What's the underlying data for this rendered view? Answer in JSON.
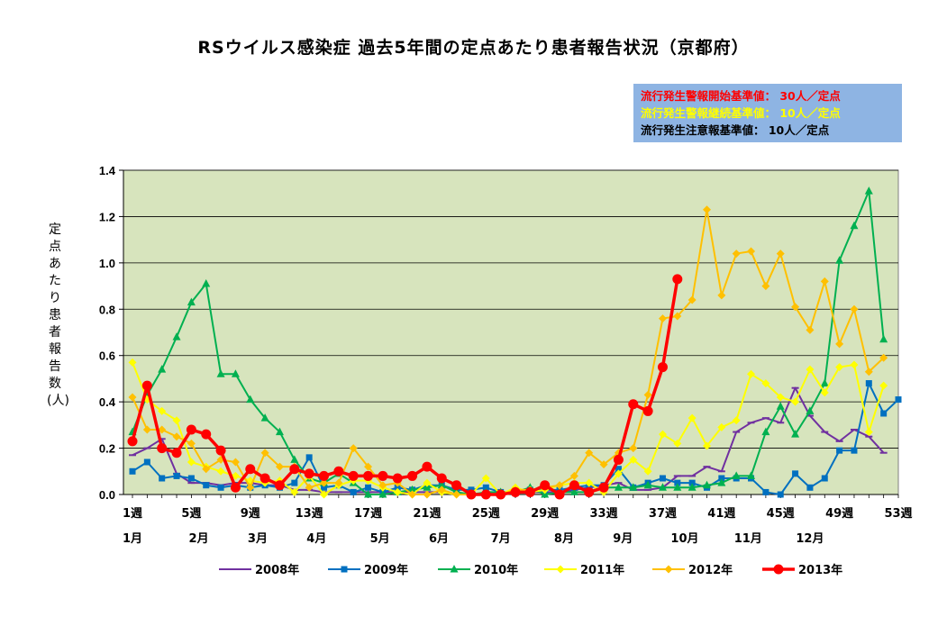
{
  "title": "RSウイルス感染症 過去5年間の定点あたり患者報告状況（京都府）",
  "criteria": [
    {
      "text": "流行発生警報開始基準値： 30人／定点",
      "color": "#ff0000"
    },
    {
      "text": "流行発生警報継続基準値： 10人／定点",
      "color": "#ffff00"
    },
    {
      "text": "流行発生注意報基準値： 10人／定点",
      "color": "#000000"
    }
  ],
  "chart_data": {
    "type": "line",
    "ylabel": "定点あたり患者報告数(人)",
    "ylim": [
      0,
      1.4
    ],
    "yticks": [
      "0.0",
      "0.2",
      "0.4",
      "0.6",
      "0.8",
      "1.0",
      "1.2",
      "1.4"
    ],
    "xlim": [
      1,
      53
    ],
    "week_labels": [
      {
        "week": 1,
        "label": "1週"
      },
      {
        "week": 5,
        "label": "5週"
      },
      {
        "week": 9,
        "label": "9週"
      },
      {
        "week": 13,
        "label": "13週"
      },
      {
        "week": 17,
        "label": "17週"
      },
      {
        "week": 21,
        "label": "21週"
      },
      {
        "week": 25,
        "label": "25週"
      },
      {
        "week": 29,
        "label": "29週"
      },
      {
        "week": 33,
        "label": "33週"
      },
      {
        "week": 37,
        "label": "37週"
      },
      {
        "week": 41,
        "label": "41週"
      },
      {
        "week": 45,
        "label": "45週"
      },
      {
        "week": 49,
        "label": "49週"
      },
      {
        "week": 53,
        "label": "53週"
      }
    ],
    "month_labels": [
      {
        "week": 1,
        "label": "1月"
      },
      {
        "week": 5.5,
        "label": "2月"
      },
      {
        "week": 9.5,
        "label": "3月"
      },
      {
        "week": 13.5,
        "label": "4月"
      },
      {
        "week": 17.8,
        "label": "5月"
      },
      {
        "week": 21.8,
        "label": "6月"
      },
      {
        "week": 26,
        "label": "7月"
      },
      {
        "week": 30.3,
        "label": "8月"
      },
      {
        "week": 34.3,
        "label": "9月"
      },
      {
        "week": 38.5,
        "label": "10月"
      },
      {
        "week": 42.8,
        "label": "11月"
      },
      {
        "week": 47,
        "label": "12月"
      }
    ],
    "grid": true,
    "legend_position": "bottom",
    "series": [
      {
        "name": "2008年",
        "color": "#7030a0",
        "marker": "dash",
        "values": [
          0.17,
          0.2,
          0.24,
          0.09,
          0.05,
          0.05,
          0.04,
          0.05,
          0.05,
          0.04,
          0.04,
          0.02,
          0.02,
          0.01,
          0.01,
          0.01,
          0.01,
          0.01,
          0.01,
          0.01,
          0.01,
          0.01,
          0.0,
          0.0,
          0.0,
          0.0,
          0.01,
          0.01,
          0.01,
          0.01,
          0.02,
          0.03,
          0.04,
          0.05,
          0.02,
          0.02,
          0.03,
          0.08,
          0.08,
          0.12,
          0.1,
          0.27,
          0.31,
          0.33,
          0.31,
          0.46,
          0.34,
          0.27,
          0.23,
          0.28,
          0.25,
          0.18,
          null
        ]
      },
      {
        "name": "2009年",
        "color": "#0070c0",
        "marker": "square",
        "values": [
          0.1,
          0.14,
          0.07,
          0.08,
          0.07,
          0.04,
          0.03,
          0.04,
          0.03,
          0.04,
          0.03,
          0.05,
          0.16,
          0.03,
          0.04,
          0.01,
          0.03,
          0.01,
          0.03,
          0.02,
          0.04,
          0.04,
          0.02,
          0.02,
          0.03,
          0.01,
          0.01,
          0.02,
          0.02,
          0.02,
          0.03,
          0.04,
          0.04,
          0.11,
          0.03,
          0.05,
          0.07,
          0.05,
          0.05,
          0.03,
          0.07,
          0.07,
          0.07,
          0.01,
          0.0,
          0.09,
          0.03,
          0.07,
          0.19,
          0.19,
          0.48,
          0.35,
          0.41
        ]
      },
      {
        "name": "2010年",
        "color": "#00b050",
        "marker": "triangle",
        "values": [
          0.27,
          0.43,
          0.54,
          0.68,
          0.83,
          0.91,
          0.52,
          0.52,
          0.41,
          0.33,
          0.27,
          0.15,
          0.07,
          0.05,
          0.09,
          0.05,
          0.0,
          0.0,
          0.01,
          0.02,
          0.03,
          0.04,
          0.01,
          0.0,
          0.01,
          0.01,
          0.01,
          0.03,
          0.0,
          0.01,
          0.01,
          0.01,
          0.03,
          0.03,
          0.03,
          0.04,
          0.03,
          0.03,
          0.03,
          0.04,
          0.05,
          0.08,
          0.08,
          0.27,
          0.38,
          0.26,
          0.36,
          0.48,
          1.01,
          1.16,
          1.31,
          0.67,
          null
        ]
      },
      {
        "name": "2011年",
        "color": "#ffff00",
        "marker": "diamond",
        "values": [
          0.57,
          0.41,
          0.36,
          0.32,
          0.14,
          0.12,
          0.1,
          0.08,
          0.06,
          0.05,
          0.06,
          0.01,
          0.08,
          0.0,
          0.04,
          0.06,
          0.06,
          0.03,
          0.01,
          0.0,
          0.05,
          0.01,
          0.0,
          0.0,
          0.07,
          0.0,
          0.03,
          0.01,
          0.02,
          0.04,
          0.05,
          0.05,
          0.01,
          0.09,
          0.15,
          0.1,
          0.26,
          0.22,
          0.33,
          0.21,
          0.29,
          0.32,
          0.52,
          0.48,
          0.42,
          0.4,
          0.54,
          0.44,
          0.55,
          0.56,
          0.27,
          0.47,
          null
        ]
      },
      {
        "name": "2012年",
        "color": "#ffc000",
        "marker": "diamond",
        "values": [
          0.42,
          0.28,
          0.28,
          0.25,
          0.22,
          0.11,
          0.15,
          0.14,
          0.03,
          0.18,
          0.12,
          0.12,
          0.03,
          0.05,
          0.05,
          0.2,
          0.12,
          0.04,
          0.05,
          0.0,
          0.0,
          0.02,
          0.0,
          0.0,
          0.0,
          0.0,
          0.02,
          0.02,
          0.03,
          0.04,
          0.08,
          0.18,
          0.13,
          0.18,
          0.2,
          0.43,
          0.76,
          0.77,
          0.84,
          1.23,
          0.86,
          1.04,
          1.05,
          0.9,
          1.04,
          0.81,
          0.71,
          0.92,
          0.65,
          0.8,
          0.53,
          0.59,
          null
        ]
      },
      {
        "name": "2013年",
        "color": "#ff0000",
        "marker": "circle",
        "values": [
          0.23,
          0.47,
          0.2,
          0.18,
          0.28,
          0.26,
          0.19,
          0.03,
          0.11,
          0.07,
          0.04,
          0.11,
          0.09,
          0.08,
          0.1,
          0.08,
          0.08,
          0.08,
          0.07,
          0.08,
          0.12,
          0.07,
          0.04,
          0.0,
          0.0,
          0.0,
          0.01,
          0.01,
          0.04,
          0.0,
          0.04,
          0.01,
          0.03,
          0.15,
          0.39,
          0.36,
          0.55,
          0.93,
          null,
          null,
          null,
          null,
          null,
          null,
          null,
          null,
          null,
          null,
          null,
          null,
          null,
          null,
          null
        ]
      }
    ]
  }
}
